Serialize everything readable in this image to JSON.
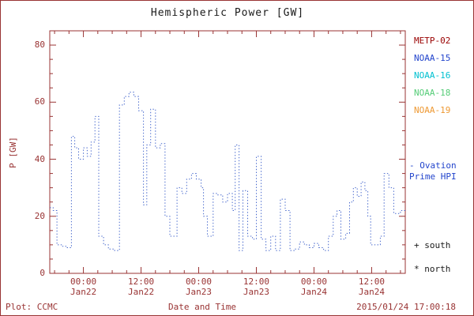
{
  "title": "Hemispheric Power [GW]",
  "colors": {
    "frame": "#993333",
    "axis_text": "#993333",
    "data_line": "#4466cc",
    "title_text": "#1a1a1a"
  },
  "legend": {
    "satellites": [
      {
        "label": "METP-02",
        "color": "#990000"
      },
      {
        "label": "NOAA-15",
        "color": "#2244cc"
      },
      {
        "label": "NOAA-16",
        "color": "#00c0d0"
      },
      {
        "label": "NOAA-18",
        "color": "#55cc77"
      },
      {
        "label": "NOAA-19",
        "color": "#ee9933"
      }
    ],
    "ovation_line1": "- Ovation",
    "ovation_line2": "Prime HPI",
    "ovation_color": "#2244cc",
    "south_label": "+ south",
    "north_label": "* north"
  },
  "footer": {
    "plot_credit": "Plot: CCMC",
    "timestamp": "2015/01/24 17:00:18"
  },
  "chart_data": {
    "type": "line",
    "line_style": "dotted-step",
    "title": "Hemispheric Power [GW]",
    "xlabel": "Date and Time",
    "ylabel": "P [GW]",
    "y_unit": "GW",
    "ylim": [
      0,
      85
    ],
    "y_ticks": [
      0,
      20,
      40,
      60,
      80
    ],
    "x_hours_reference": "hours relative to Jan22 00:00",
    "xlim_hours": [
      -7,
      67
    ],
    "x_ticks": [
      {
        "hour": 0,
        "time": "00:00",
        "date": "Jan22"
      },
      {
        "hour": 12,
        "time": "12:00",
        "date": "Jan22"
      },
      {
        "hour": 24,
        "time": "00:00",
        "date": "Jan23"
      },
      {
        "hour": 36,
        "time": "12:00",
        "date": "Jan23"
      },
      {
        "hour": 48,
        "time": "00:00",
        "date": "Jan24"
      },
      {
        "hour": 60,
        "time": "12:00",
        "date": "Jan24"
      }
    ],
    "grid": false,
    "legend_position": "right-outside",
    "series": [
      {
        "name": "Ovation Prime HPI",
        "color": "#4466cc",
        "points": [
          [
            -7,
            23
          ],
          [
            -6.3,
            22
          ],
          [
            -5.5,
            10
          ],
          [
            -4.5,
            9.5
          ],
          [
            -3.5,
            9
          ],
          [
            -2.5,
            48
          ],
          [
            -1.8,
            44
          ],
          [
            -1,
            40
          ],
          [
            0,
            44
          ],
          [
            0.8,
            41
          ],
          [
            1.6,
            46
          ],
          [
            2.4,
            55
          ],
          [
            3.2,
            13
          ],
          [
            4.2,
            10
          ],
          [
            5.2,
            8.5
          ],
          [
            6.5,
            8
          ],
          [
            7.5,
            59
          ],
          [
            8.5,
            62
          ],
          [
            9.5,
            63.5
          ],
          [
            10.5,
            62
          ],
          [
            11.5,
            57
          ],
          [
            12.5,
            24
          ],
          [
            13.2,
            45
          ],
          [
            14,
            57.5
          ],
          [
            15,
            44
          ],
          [
            16,
            45.5
          ],
          [
            17,
            20
          ],
          [
            18,
            13
          ],
          [
            19.5,
            30
          ],
          [
            20.5,
            28
          ],
          [
            21.5,
            33
          ],
          [
            22.5,
            35
          ],
          [
            23.5,
            33
          ],
          [
            24.5,
            30
          ],
          [
            25,
            20
          ],
          [
            25.8,
            13
          ],
          [
            27,
            28
          ],
          [
            28,
            27.5
          ],
          [
            29,
            25
          ],
          [
            30,
            28
          ],
          [
            31,
            22
          ],
          [
            31.6,
            45
          ],
          [
            32.4,
            8
          ],
          [
            33.2,
            29
          ],
          [
            34.2,
            13
          ],
          [
            35.2,
            12
          ],
          [
            36,
            41
          ],
          [
            37,
            12
          ],
          [
            38,
            8
          ],
          [
            39,
            13
          ],
          [
            40,
            8
          ],
          [
            41,
            26
          ],
          [
            42,
            22
          ],
          [
            43,
            8
          ],
          [
            44,
            8.5
          ],
          [
            45,
            11
          ],
          [
            46,
            10
          ],
          [
            47,
            9
          ],
          [
            48,
            10.5
          ],
          [
            49,
            9
          ],
          [
            50,
            8
          ],
          [
            51,
            13
          ],
          [
            52,
            20
          ],
          [
            52.8,
            22
          ],
          [
            53.6,
            12
          ],
          [
            54.6,
            14
          ],
          [
            55.4,
            25
          ],
          [
            56.2,
            30
          ],
          [
            57,
            27
          ],
          [
            57.8,
            32
          ],
          [
            58.6,
            29
          ],
          [
            59.2,
            20
          ],
          [
            59.8,
            10
          ],
          [
            61,
            10
          ],
          [
            61.8,
            13
          ],
          [
            62.6,
            35
          ],
          [
            63.6,
            30
          ],
          [
            64.6,
            21
          ],
          [
            66,
            22
          ]
        ]
      }
    ]
  }
}
